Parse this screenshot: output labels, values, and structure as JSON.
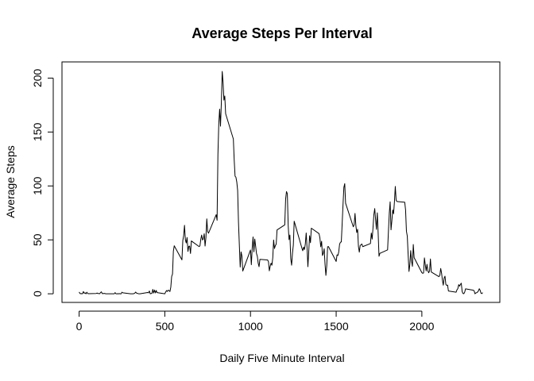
{
  "chart_data": {
    "type": "line",
    "title": "Average Steps Per Interval",
    "xlabel": "Daily Five Minute Interval",
    "ylabel": "Average Steps",
    "xlim": [
      -100,
      2455
    ],
    "ylim": [
      -8,
      215
    ],
    "x_ticks": [
      0,
      500,
      1000,
      1500,
      2000
    ],
    "y_ticks": [
      0,
      50,
      100,
      150,
      200
    ],
    "grid": false,
    "legend": "none",
    "line_color": "#000000",
    "series": [
      {
        "values": [
          [
            0,
            1.7
          ],
          [
            5,
            0.3
          ],
          [
            10,
            0.1
          ],
          [
            15,
            0.2
          ],
          [
            20,
            0.1
          ],
          [
            25,
            2.1
          ],
          [
            30,
            0.5
          ],
          [
            35,
            0.9
          ],
          [
            40,
            0.0
          ],
          [
            45,
            1.5
          ],
          [
            50,
            0.3
          ],
          [
            55,
            0.1
          ],
          [
            100,
            0.3
          ],
          [
            105,
            0.7
          ],
          [
            110,
            0.2
          ],
          [
            115,
            0.3
          ],
          [
            120,
            0.0
          ],
          [
            125,
            1.1
          ],
          [
            130,
            1.8
          ],
          [
            135,
            0.2
          ],
          [
            140,
            0.2
          ],
          [
            145,
            0.4
          ],
          [
            150,
            0.3
          ],
          [
            155,
            0.0
          ],
          [
            200,
            0.0
          ],
          [
            205,
            0.0
          ],
          [
            210,
            1.1
          ],
          [
            215,
            0.0
          ],
          [
            220,
            0.0
          ],
          [
            225,
            0.1
          ],
          [
            230,
            0.0
          ],
          [
            235,
            0.2
          ],
          [
            240,
            0.0
          ],
          [
            245,
            0.0
          ],
          [
            250,
            1.5
          ],
          [
            255,
            0.9
          ],
          [
            300,
            0.0
          ],
          [
            305,
            0.0
          ],
          [
            310,
            0.0
          ],
          [
            315,
            0.0
          ],
          [
            320,
            0.2
          ],
          [
            325,
            0.6
          ],
          [
            330,
            1.6
          ],
          [
            335,
            0.6
          ],
          [
            340,
            0.5
          ],
          [
            345,
            0.1
          ],
          [
            350,
            0.0
          ],
          [
            355,
            0.0
          ],
          [
            400,
            1.2
          ],
          [
            405,
            0.9
          ],
          [
            410,
            2.6
          ],
          [
            415,
            0.0
          ],
          [
            420,
            0.3
          ],
          [
            425,
            0.4
          ],
          [
            430,
            4.1
          ],
          [
            435,
            0.7
          ],
          [
            440,
            3.5
          ],
          [
            445,
            0.8
          ],
          [
            450,
            3.1
          ],
          [
            455,
            1.1
          ],
          [
            500,
            0.0
          ],
          [
            505,
            1.6
          ],
          [
            510,
            3.0
          ],
          [
            515,
            2.2
          ],
          [
            520,
            3.3
          ],
          [
            525,
            3.0
          ],
          [
            530,
            2.1
          ],
          [
            535,
            6.1
          ],
          [
            540,
            16.0
          ],
          [
            545,
            18.3
          ],
          [
            550,
            39.5
          ],
          [
            555,
            44.5
          ],
          [
            600,
            31.5
          ],
          [
            605,
            49.3
          ],
          [
            610,
            53.8
          ],
          [
            615,
            63.5
          ],
          [
            620,
            50.0
          ],
          [
            625,
            47.1
          ],
          [
            630,
            52.2
          ],
          [
            635,
            39.3
          ],
          [
            640,
            44.0
          ],
          [
            645,
            44.2
          ],
          [
            650,
            37.4
          ],
          [
            655,
            49.0
          ],
          [
            700,
            43.8
          ],
          [
            705,
            44.4
          ],
          [
            710,
            50.5
          ],
          [
            715,
            54.5
          ],
          [
            720,
            49.9
          ],
          [
            725,
            50.9
          ],
          [
            730,
            55.7
          ],
          [
            735,
            44.3
          ],
          [
            740,
            52.3
          ],
          [
            745,
            69.5
          ],
          [
            750,
            57.8
          ],
          [
            755,
            56.2
          ],
          [
            800,
            73.4
          ],
          [
            805,
            68.2
          ],
          [
            810,
            129.4
          ],
          [
            815,
            157.5
          ],
          [
            820,
            171.2
          ],
          [
            825,
            155.4
          ],
          [
            830,
            177.3
          ],
          [
            835,
            206.2
          ],
          [
            840,
            195.9
          ],
          [
            845,
            179.6
          ],
          [
            850,
            183.4
          ],
          [
            855,
            167.0
          ],
          [
            900,
            143.5
          ],
          [
            905,
            124.0
          ],
          [
            910,
            109.1
          ],
          [
            915,
            108.1
          ],
          [
            920,
            103.7
          ],
          [
            925,
            95.9
          ],
          [
            930,
            66.2
          ],
          [
            935,
            45.2
          ],
          [
            940,
            24.8
          ],
          [
            945,
            38.8
          ],
          [
            950,
            35.0
          ],
          [
            955,
            21.1
          ],
          [
            1000,
            40.6
          ],
          [
            1005,
            27.0
          ],
          [
            1010,
            42.4
          ],
          [
            1015,
            52.7
          ],
          [
            1020,
            38.9
          ],
          [
            1025,
            50.8
          ],
          [
            1030,
            44.3
          ],
          [
            1035,
            37.4
          ],
          [
            1040,
            34.7
          ],
          [
            1045,
            28.3
          ],
          [
            1050,
            25.1
          ],
          [
            1055,
            31.9
          ],
          [
            1100,
            31.4
          ],
          [
            1105,
            29.7
          ],
          [
            1110,
            21.3
          ],
          [
            1115,
            25.5
          ],
          [
            1120,
            28.4
          ],
          [
            1125,
            26.5
          ],
          [
            1130,
            33.4
          ],
          [
            1135,
            49.9
          ],
          [
            1140,
            42.0
          ],
          [
            1145,
            44.6
          ],
          [
            1150,
            46.0
          ],
          [
            1155,
            59.2
          ],
          [
            1200,
            63.9
          ],
          [
            1205,
            87.7
          ],
          [
            1210,
            94.8
          ],
          [
            1215,
            92.8
          ],
          [
            1220,
            63.4
          ],
          [
            1225,
            50.2
          ],
          [
            1230,
            54.5
          ],
          [
            1235,
            32.4
          ],
          [
            1240,
            26.5
          ],
          [
            1245,
            37.7
          ],
          [
            1250,
            45.1
          ],
          [
            1255,
            67.3
          ],
          [
            1300,
            42.3
          ],
          [
            1305,
            39.9
          ],
          [
            1310,
            43.3
          ],
          [
            1315,
            41.0
          ],
          [
            1320,
            46.2
          ],
          [
            1325,
            56.4
          ],
          [
            1330,
            42.8
          ],
          [
            1335,
            25.1
          ],
          [
            1340,
            39.5
          ],
          [
            1345,
            53.8
          ],
          [
            1350,
            47.4
          ],
          [
            1355,
            60.8
          ],
          [
            1400,
            55.8
          ],
          [
            1405,
            51.9
          ],
          [
            1410,
            43.6
          ],
          [
            1415,
            48.7
          ],
          [
            1420,
            35.5
          ],
          [
            1425,
            37.5
          ],
          [
            1430,
            41.8
          ],
          [
            1435,
            27.5
          ],
          [
            1440,
            17.1
          ],
          [
            1445,
            26.1
          ],
          [
            1450,
            43.6
          ],
          [
            1455,
            43.8
          ],
          [
            1500,
            30.0
          ],
          [
            1505,
            36.1
          ],
          [
            1510,
            35.5
          ],
          [
            1515,
            38.8
          ],
          [
            1520,
            46.0
          ],
          [
            1525,
            47.8
          ],
          [
            1530,
            48.1
          ],
          [
            1535,
            65.3
          ],
          [
            1540,
            82.9
          ],
          [
            1545,
            98.7
          ],
          [
            1550,
            102.1
          ],
          [
            1555,
            83.96
          ],
          [
            1600,
            62.1
          ],
          [
            1605,
            64.1
          ],
          [
            1610,
            74.5
          ],
          [
            1615,
            63.2
          ],
          [
            1620,
            56.9
          ],
          [
            1625,
            59.8
          ],
          [
            1630,
            43.9
          ],
          [
            1635,
            38.6
          ],
          [
            1640,
            44.7
          ],
          [
            1645,
            45.5
          ],
          [
            1650,
            46.2
          ],
          [
            1655,
            43.7
          ],
          [
            1700,
            46.6
          ],
          [
            1705,
            56.3
          ],
          [
            1710,
            50.7
          ],
          [
            1715,
            61.2
          ],
          [
            1720,
            73.4
          ],
          [
            1725,
            79.0
          ],
          [
            1730,
            68.9
          ],
          [
            1735,
            59.7
          ],
          [
            1740,
            75.1
          ],
          [
            1745,
            56.5
          ],
          [
            1750,
            34.8
          ],
          [
            1755,
            37.5
          ],
          [
            1800,
            40.7
          ],
          [
            1805,
            58.0
          ],
          [
            1810,
            74.7
          ],
          [
            1815,
            85.3
          ],
          [
            1820,
            59.3
          ],
          [
            1825,
            67.8
          ],
          [
            1830,
            77.7
          ],
          [
            1835,
            74.2
          ],
          [
            1840,
            85.3
          ],
          [
            1845,
            99.5
          ],
          [
            1850,
            86.6
          ],
          [
            1855,
            85.6
          ],
          [
            1900,
            84.9
          ],
          [
            1905,
            77.8
          ],
          [
            1910,
            58.0
          ],
          [
            1915,
            53.4
          ],
          [
            1920,
            36.3
          ],
          [
            1925,
            20.7
          ],
          [
            1930,
            27.4
          ],
          [
            1935,
            40.0
          ],
          [
            1940,
            30.2
          ],
          [
            1945,
            25.5
          ],
          [
            1950,
            45.7
          ],
          [
            1955,
            33.5
          ],
          [
            2000,
            19.6
          ],
          [
            2005,
            19.0
          ],
          [
            2010,
            19.3
          ],
          [
            2015,
            33.3
          ],
          [
            2020,
            26.8
          ],
          [
            2025,
            21.2
          ],
          [
            2030,
            27.3
          ],
          [
            2035,
            21.3
          ],
          [
            2040,
            19.5
          ],
          [
            2045,
            21.3
          ],
          [
            2050,
            32.3
          ],
          [
            2055,
            20.2
          ],
          [
            2100,
            15.9
          ],
          [
            2105,
            17.2
          ],
          [
            2110,
            23.5
          ],
          [
            2115,
            19.2
          ],
          [
            2120,
            12.5
          ],
          [
            2125,
            8.0
          ],
          [
            2130,
            14.7
          ],
          [
            2135,
            16.3
          ],
          [
            2140,
            8.7
          ],
          [
            2145,
            7.8
          ],
          [
            2150,
            8.1
          ],
          [
            2155,
            2.6
          ],
          [
            2200,
            1.5
          ],
          [
            2205,
            3.7
          ],
          [
            2210,
            4.8
          ],
          [
            2215,
            8.5
          ],
          [
            2220,
            7.1
          ],
          [
            2225,
            8.7
          ],
          [
            2230,
            9.8
          ],
          [
            2235,
            2.2
          ],
          [
            2240,
            0.3
          ],
          [
            2245,
            0.1
          ],
          [
            2250,
            1.6
          ],
          [
            2255,
            4.6
          ],
          [
            2300,
            3.3
          ],
          [
            2305,
            2.8
          ],
          [
            2310,
            0.0
          ],
          [
            2315,
            0.8
          ],
          [
            2320,
            1.0
          ],
          [
            2325,
            1.6
          ],
          [
            2330,
            2.6
          ],
          [
            2335,
            4.7
          ],
          [
            2340,
            3.3
          ],
          [
            2345,
            0.6
          ],
          [
            2350,
            0.2
          ],
          [
            2355,
            1.1
          ]
        ]
      }
    ]
  }
}
